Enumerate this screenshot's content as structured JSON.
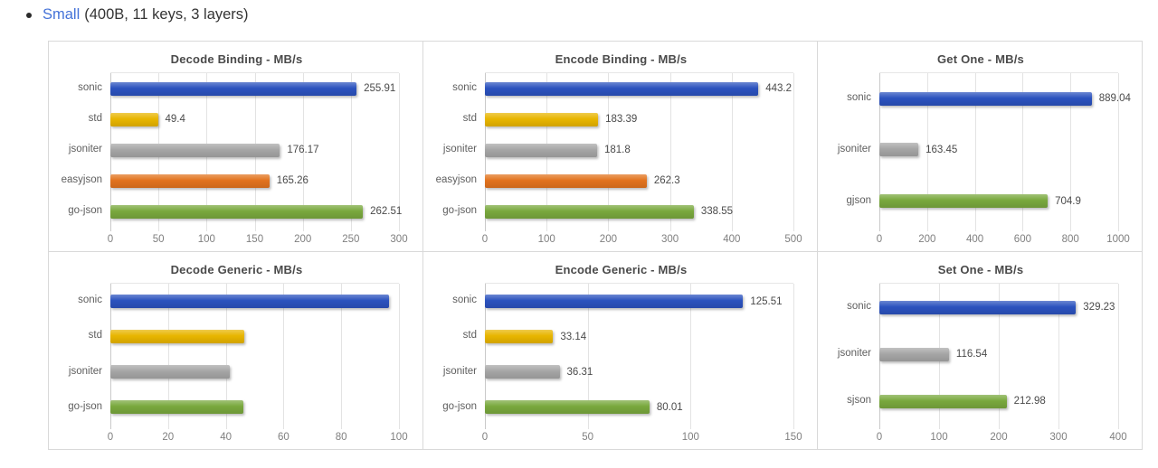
{
  "header": {
    "link_text": "Small",
    "suffix": "(400B, 11 keys, 3 layers)",
    "link_color": "#4472d8"
  },
  "palette": {
    "sonic": "#2b52be",
    "std": "#e8b500",
    "jsoniter": "#a6a6a6",
    "easyjson": "#e2731e",
    "go-json": "#79a83d",
    "gjson": "#79a83d",
    "sjson": "#79a83d"
  },
  "chart_data": [
    {
      "type": "bar",
      "orientation": "horizontal",
      "name": "decode-binding",
      "title": "Decode Binding - MB/s",
      "categories": [
        "sonic",
        "std",
        "jsoniter",
        "easyjson",
        "go-json"
      ],
      "values": [
        255.91,
        49.4,
        176.17,
        165.26,
        262.51
      ],
      "value_labels_shown": true,
      "xlim": [
        0,
        300
      ],
      "xticks": [
        0,
        50,
        100,
        150,
        200,
        250,
        300
      ],
      "grid": "vertical"
    },
    {
      "type": "bar",
      "orientation": "horizontal",
      "name": "encode-binding",
      "title": "Encode Binding - MB/s",
      "categories": [
        "sonic",
        "std",
        "jsoniter",
        "easyjson",
        "go-json"
      ],
      "values": [
        443.2,
        183.39,
        181.8,
        262.3,
        338.55
      ],
      "value_labels_shown": true,
      "xlim": [
        0,
        500
      ],
      "xticks": [
        0,
        100,
        200,
        300,
        400,
        500
      ],
      "grid": "vertical"
    },
    {
      "type": "bar",
      "orientation": "horizontal",
      "name": "get-one",
      "title": "Get One - MB/s",
      "categories": [
        "sonic",
        "jsoniter",
        "gjson"
      ],
      "values": [
        889.04,
        163.45,
        704.9
      ],
      "value_labels_shown": true,
      "xlim": [
        0,
        1000
      ],
      "xticks": [
        0,
        200,
        400,
        600,
        800,
        1000
      ],
      "grid": "vertical"
    },
    {
      "type": "bar",
      "orientation": "horizontal",
      "name": "decode-generic",
      "title": "Decode Generic - MB/s",
      "categories": [
        "sonic",
        "std",
        "jsoniter",
        "go-json"
      ],
      "values": [
        96.5,
        46.4,
        41.3,
        46.2
      ],
      "values_estimated": true,
      "value_labels_shown": false,
      "xlim": [
        0,
        100
      ],
      "xticks": [
        0,
        20,
        40,
        60,
        80,
        100
      ],
      "grid": "vertical"
    },
    {
      "type": "bar",
      "orientation": "horizontal",
      "name": "encode-generic",
      "title": "Encode Generic - MB/s",
      "categories": [
        "sonic",
        "std",
        "jsoniter",
        "go-json"
      ],
      "values": [
        125.51,
        33.14,
        36.31,
        80.01
      ],
      "value_labels_shown": true,
      "xlim": [
        0,
        150
      ],
      "xticks": [
        0,
        50,
        100,
        150
      ],
      "grid": "vertical"
    },
    {
      "type": "bar",
      "orientation": "horizontal",
      "name": "set-one",
      "title": "Set One - MB/s",
      "categories": [
        "sonic",
        "jsoniter",
        "sjson"
      ],
      "values": [
        329.23,
        116.54,
        212.98
      ],
      "value_labels_shown": true,
      "xlim": [
        0,
        400
      ],
      "xticks": [
        0,
        100,
        200,
        300,
        400
      ],
      "grid": "vertical"
    }
  ]
}
